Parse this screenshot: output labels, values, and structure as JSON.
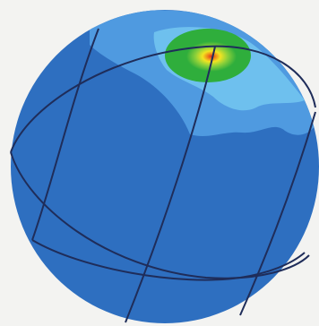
{
  "figure": {
    "kind": "sphere with contour shading and grid lines",
    "colors": {
      "background": "#f3f3f1",
      "sphere_base": "#2e6fc0",
      "contour_light_blue": "#4f9ae0",
      "contour_cyan": "#6ec0ee",
      "contour_green": "#2fae3c",
      "contour_yellow": "#f2e421",
      "contour_orange": "#f08a1a",
      "contour_red": "#e0301c",
      "grid_lines": "#1f2d5a"
    }
  }
}
